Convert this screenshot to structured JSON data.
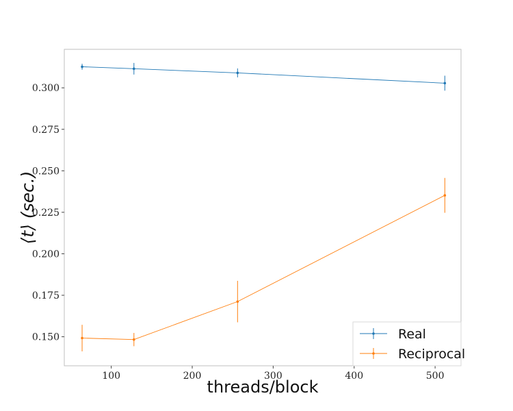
{
  "chart_data": {
    "type": "line",
    "title": "",
    "xlabel": "threads/block",
    "ylabel": "⟨t⟩ (sec.)",
    "xlim": [
      42,
      532
    ],
    "ylim": [
      0.1325,
      0.3232
    ],
    "xticks": [
      100,
      200,
      300,
      400,
      500
    ],
    "yticks": [
      0.15,
      0.175,
      0.2,
      0.225,
      0.25,
      0.275,
      0.3
    ],
    "ytick_labels": [
      "0.150",
      "0.175",
      "0.200",
      "0.225",
      "0.250",
      "0.275",
      "0.300"
    ],
    "grid": false,
    "legend_position": "lower-right",
    "error_bars": true,
    "series": [
      {
        "name": "Real",
        "color": "#1f77b4",
        "x": [
          64,
          128,
          256,
          512
        ],
        "y": [
          0.3127,
          0.3115,
          0.309,
          0.3028
        ],
        "err": [
          0.0018,
          0.0035,
          0.0027,
          0.0045
        ]
      },
      {
        "name": "Reciprocal",
        "color": "#ff7f0e",
        "x": [
          64,
          128,
          256,
          512
        ],
        "y": [
          0.1492,
          0.1483,
          0.1712,
          0.2352
        ],
        "err": [
          0.008,
          0.004,
          0.0125,
          0.0105
        ]
      }
    ]
  }
}
